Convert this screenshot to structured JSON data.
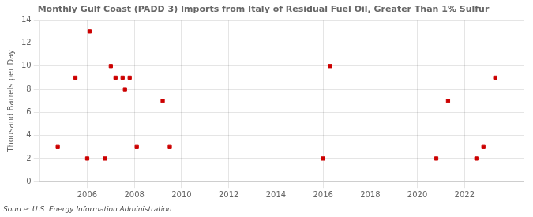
{
  "chart_data": {
    "type": "scatter",
    "title": "Monthly Gulf Coast (PADD 3) Imports from Italy of Residual Fuel Oil, Greater Than 1% Sulfur",
    "ylabel": "Thousand Barrels per Day",
    "source": "Source: U.S. Energy Information Administration",
    "color": "#cc0000",
    "marker": "square",
    "x": [
      2004.75,
      2005.5,
      2006.0,
      2006.1,
      2006.75,
      2007.0,
      2007.2,
      2007.5,
      2007.6,
      2007.8,
      2008.1,
      2009.2,
      2009.5,
      2016.0,
      2016.3,
      2020.8,
      2021.3,
      2022.5,
      2022.8,
      2023.3
    ],
    "values": [
      3,
      9,
      2,
      13,
      2,
      10,
      9,
      9,
      8,
      9,
      3,
      7,
      3,
      2,
      10,
      2,
      7,
      2,
      3,
      9
    ],
    "xlim": [
      2004.0,
      2024.5
    ],
    "ylim": [
      0,
      14
    ],
    "xticks": [
      2006,
      2008,
      2010,
      2012,
      2014,
      2016,
      2018,
      2020,
      2022
    ],
    "yticks": [
      0,
      2,
      4,
      6,
      8,
      10,
      12,
      14
    ],
    "grid": true
  }
}
